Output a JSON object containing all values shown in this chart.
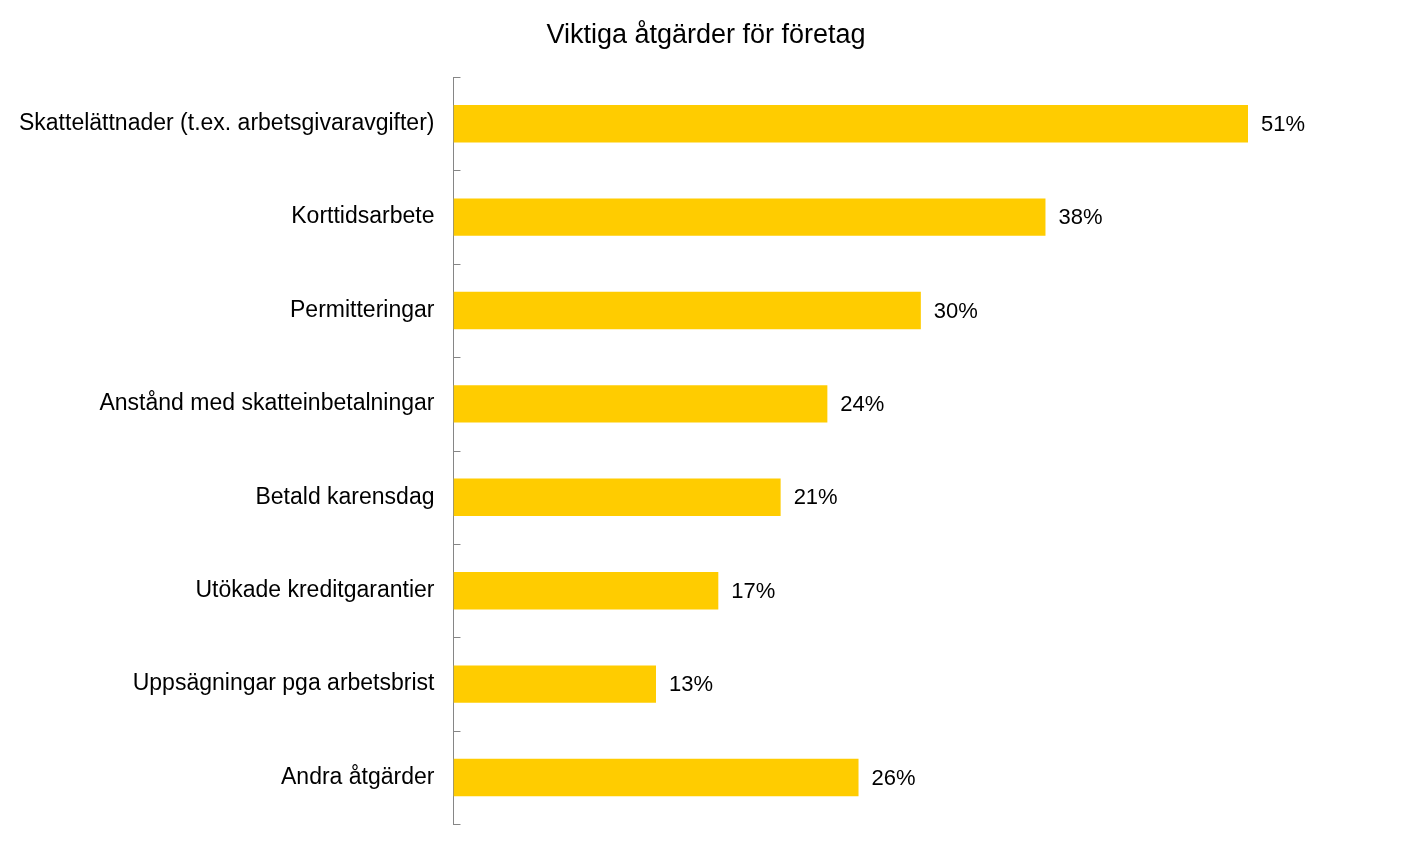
{
  "chart_data": {
    "type": "bar",
    "orientation": "horizontal",
    "title": "Viktiga åtgärder för företag",
    "categories": [
      "Skattelättnader (t.ex. arbetsgivaravgifter)",
      "Korttidsarbete",
      "Permitteringar",
      "Anstånd med skatteinbetalningar",
      "Betald karensdag",
      "Utökade kreditgarantier",
      "Uppsägningar pga arbetsbrist",
      "Andra åtgärder"
    ],
    "values": [
      51,
      38,
      30,
      24,
      21,
      17,
      13,
      26
    ],
    "value_labels": [
      "51%",
      "38%",
      "30%",
      "24%",
      "21%",
      "17%",
      "13%",
      "26%"
    ],
    "color": "#ffcc00",
    "tick_labels": "y"
  }
}
